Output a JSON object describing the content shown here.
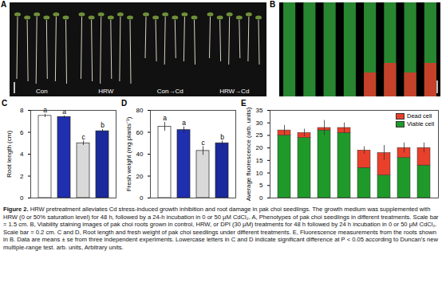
{
  "photo_panels": [
    {
      "panel": "A",
      "labels": [
        "Con",
        "HRW",
        "Con→Cd",
        "HRW→Cd"
      ]
    },
    {
      "panel": "B"
    }
  ],
  "chart_data": [
    {
      "panel": "C",
      "type": "bar",
      "ylabel": "Root length (cm)",
      "categories": [
        null,
        null,
        null,
        null
      ],
      "values": [
        7.5,
        7.4,
        5.0,
        6.1
      ],
      "errors": [
        0.15,
        0.1,
        0.2,
        0.15
      ],
      "annotations": [
        "a",
        "a",
        "c",
        "b"
      ],
      "colors": [
        "#ffffff",
        "#1f2fb0",
        "#d9d9d9",
        "#1a2a9c"
      ],
      "ylim": [
        0,
        8
      ],
      "yticks": [
        0,
        2,
        4,
        6,
        8
      ],
      "tick_labels": "y"
    },
    {
      "panel": "D",
      "type": "bar",
      "ylabel": "Fresh weight (mg plants⁻¹)",
      "categories": [
        null,
        null,
        null,
        null
      ],
      "values": [
        65,
        62,
        43,
        50
      ],
      "errors": [
        4,
        3,
        4,
        2
      ],
      "annotations": [
        "a",
        "a",
        "c",
        "b"
      ],
      "colors": [
        "#ffffff",
        "#1f2fb0",
        "#d9d9d9",
        "#1a2a9c"
      ],
      "ylim": [
        0,
        80
      ],
      "yticks": [
        0,
        20,
        40,
        60,
        80
      ],
      "tick_labels": "y"
    },
    {
      "panel": "E",
      "type": "bar",
      "stacked": true,
      "ylabel": "Average fluorescence (arb. units)",
      "categories": [
        null,
        null,
        null,
        null,
        null,
        null,
        null,
        null
      ],
      "series": [
        {
          "name": "Viable cell",
          "color": "#1f9a2a",
          "values": [
            25,
            24,
            27,
            26,
            12,
            9,
            16,
            13
          ]
        },
        {
          "name": "Dead cell",
          "color": "#e8402a",
          "values": [
            2,
            2,
            1,
            2,
            7,
            9,
            4,
            7
          ]
        }
      ],
      "errors": [
        2,
        1.5,
        3,
        2,
        1.5,
        3,
        2,
        2
      ],
      "legend": "top-right",
      "ylim": [
        0,
        35
      ],
      "yticks": [
        0,
        5,
        10,
        15,
        20,
        25,
        30,
        35
      ],
      "tick_labels": "y"
    }
  ],
  "caption": {
    "title": "Figure 2.",
    "text": "HRW pretreatment alleviates Cd stress-induced growth inhibition and root damage in pak choi seedlings. The growth medium was supplemented with HRW (0 or 50% saturation level) for 48 h, followed by a 24-h incubation in 0 or 50 μM CdCl₂. A, Phenotypes of pak choi seedlings in different treatments. Scale bar = 1.5 cm. B, Viability staining images of pak choi roots grown in control, HRW, or DPI (30 μM) treatments for 48 h followed by 24 h incubation in 0 or 50 μM CdCl₂. Scale bar = 0.2 cm. C and D, Root length and fresh weight of pak choi seedlings under different treatments. E, Fluorescence measurements from the roots shown in B. Data are means ± se from three independent experiments. Lowercase letters in C and D indicate significant difference at P < 0.05 according to Duncan's new multiple-range test. arb. units, Arbitrary units."
  }
}
